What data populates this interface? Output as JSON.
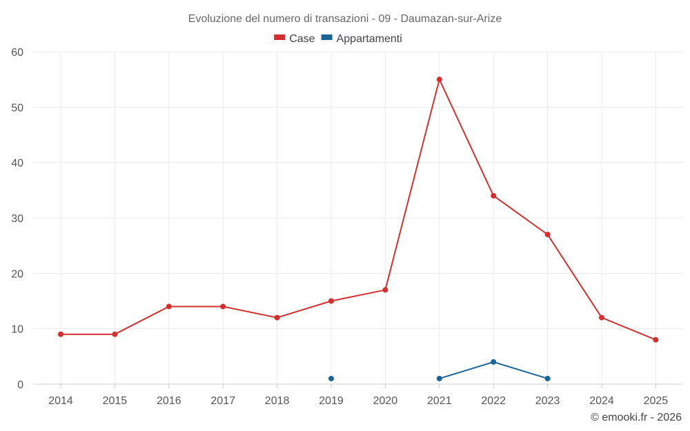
{
  "chart_data": {
    "type": "line",
    "title": "Evoluzione del numero di transazioni - 09 - Daumazan-sur-Arize",
    "xlabel": "",
    "ylabel": "",
    "categories": [
      "2014",
      "2015",
      "2016",
      "2017",
      "2018",
      "2019",
      "2020",
      "2021",
      "2022",
      "2023",
      "2024",
      "2025"
    ],
    "ylim": [
      0,
      60
    ],
    "yticks": [
      0,
      10,
      20,
      30,
      40,
      50,
      60
    ],
    "grid": true,
    "legend_position": "top-center",
    "series": [
      {
        "name": "Case",
        "color": "#d32f2f",
        "values": [
          9,
          9,
          14,
          14,
          12,
          15,
          17,
          55,
          34,
          27,
          12,
          8
        ]
      },
      {
        "name": "Appartamenti",
        "color": "#1a6496",
        "values": [
          null,
          null,
          null,
          null,
          null,
          1,
          null,
          1,
          4,
          1,
          null,
          null
        ]
      }
    ],
    "credit": "© emooki.fr - 2026"
  }
}
